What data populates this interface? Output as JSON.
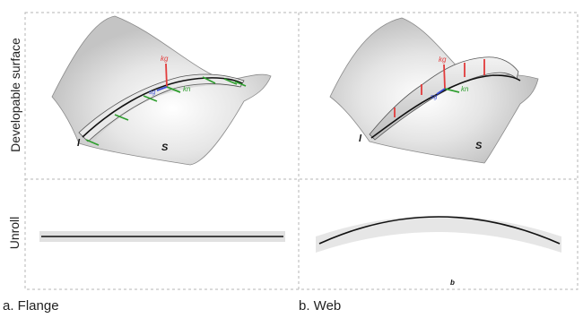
{
  "row_labels": {
    "top": "Developable surface",
    "bottom": "Unroll"
  },
  "captions": {
    "flange": "a. Flange",
    "web": "b. Web"
  },
  "panel_a": {
    "line_label": "l",
    "surface_label": "S",
    "kg_label": "kg",
    "kn_label": "kn",
    "sg_label": "sg"
  },
  "panel_b": {
    "line_label": "l",
    "surface_label": "S",
    "kg_label": "kg",
    "kn_label": "kn",
    "sg_label": "sg",
    "unroll_label": "b"
  },
  "colors": {
    "kg": "#e23b3b",
    "kn": "#2e9e2e",
    "sg": "#3b4fd8",
    "grid": "#b5b5b5",
    "strip": "#d9d9d9"
  }
}
